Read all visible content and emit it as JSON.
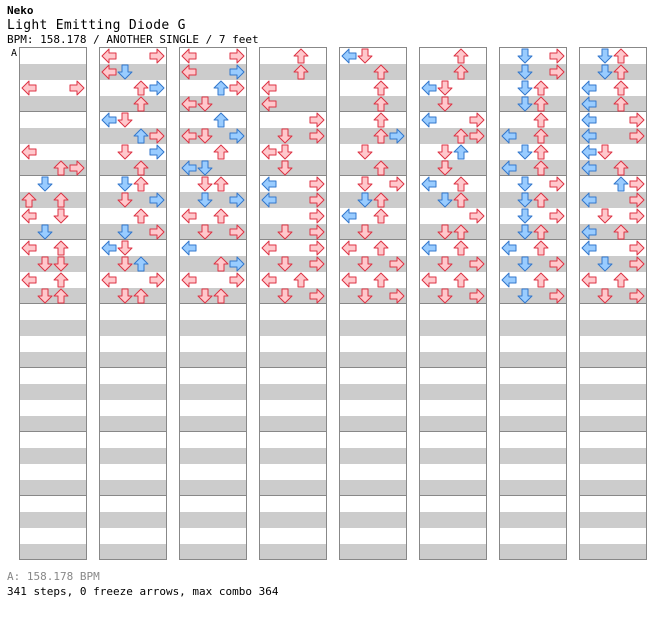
{
  "song": {
    "artist": "Neko",
    "title": "Light Emitting Diode G",
    "meta": "BPM: 158.178 / ANOTHER SINGLE / 7 feet"
  },
  "chart": {
    "tempo_marker": "A",
    "footer_bpm": "A: 158.178 BPM",
    "footer_stats": "341 steps, 0 freeze arrows, max combo 364",
    "colors": {
      "red_fill": "#ffc8cc",
      "red_stroke": "#dd3344",
      "blue_fill": "#99ccff",
      "blue_stroke": "#3377cc"
    },
    "notes": [
      [
        [
          2,
          0,
          "L",
          "r"
        ],
        [
          2,
          3,
          "R",
          "r"
        ],
        [
          6,
          0,
          "L",
          "r"
        ],
        [
          7,
          2,
          "U",
          "r"
        ],
        [
          7,
          3,
          "R",
          "r"
        ],
        [
          8,
          1,
          "D",
          "b"
        ],
        [
          9,
          0,
          "U",
          "r"
        ],
        [
          9,
          2,
          "U",
          "r"
        ],
        [
          10,
          0,
          "L",
          "r"
        ],
        [
          10,
          2,
          "D",
          "r"
        ],
        [
          11,
          1,
          "D",
          "b"
        ],
        [
          12,
          0,
          "L",
          "r"
        ],
        [
          12,
          2,
          "U",
          "r"
        ],
        [
          13,
          1,
          "D",
          "r"
        ],
        [
          13,
          2,
          "D",
          "r"
        ],
        [
          14,
          0,
          "L",
          "r"
        ],
        [
          14,
          2,
          "U",
          "r"
        ],
        [
          15,
          1,
          "D",
          "r"
        ],
        [
          15,
          2,
          "U",
          "r"
        ]
      ],
      [
        [
          0,
          0,
          "L",
          "r"
        ],
        [
          0,
          3,
          "R",
          "r"
        ],
        [
          1,
          0,
          "L",
          "r"
        ],
        [
          1,
          1,
          "D",
          "b"
        ],
        [
          2,
          2,
          "U",
          "r"
        ],
        [
          2,
          3,
          "R",
          "b"
        ],
        [
          3,
          2,
          "U",
          "r"
        ],
        [
          4,
          0,
          "L",
          "b"
        ],
        [
          4,
          1,
          "D",
          "r"
        ],
        [
          5,
          2,
          "U",
          "b"
        ],
        [
          5,
          3,
          "R",
          "r"
        ],
        [
          6,
          1,
          "D",
          "r"
        ],
        [
          6,
          3,
          "R",
          "b"
        ],
        [
          7,
          2,
          "U",
          "r"
        ],
        [
          8,
          1,
          "D",
          "b"
        ],
        [
          8,
          2,
          "U",
          "r"
        ],
        [
          9,
          1,
          "D",
          "r"
        ],
        [
          9,
          3,
          "R",
          "b"
        ],
        [
          10,
          2,
          "U",
          "r"
        ],
        [
          11,
          1,
          "D",
          "b"
        ],
        [
          11,
          3,
          "R",
          "r"
        ],
        [
          12,
          0,
          "L",
          "b"
        ],
        [
          12,
          1,
          "D",
          "r"
        ],
        [
          13,
          1,
          "D",
          "r"
        ],
        [
          13,
          2,
          "U",
          "b"
        ],
        [
          14,
          0,
          "L",
          "r"
        ],
        [
          14,
          3,
          "R",
          "r"
        ],
        [
          15,
          1,
          "D",
          "r"
        ],
        [
          15,
          2,
          "U",
          "r"
        ]
      ],
      [
        [
          0,
          0,
          "L",
          "r"
        ],
        [
          0,
          3,
          "R",
          "r"
        ],
        [
          1,
          0,
          "L",
          "r"
        ],
        [
          1,
          3,
          "R",
          "b"
        ],
        [
          2,
          2,
          "U",
          "b"
        ],
        [
          2,
          3,
          "R",
          "r"
        ],
        [
          3,
          0,
          "L",
          "r"
        ],
        [
          3,
          1,
          "D",
          "r"
        ],
        [
          4,
          2,
          "U",
          "b"
        ],
        [
          5,
          0,
          "L",
          "r"
        ],
        [
          5,
          1,
          "D",
          "r"
        ],
        [
          5,
          3,
          "R",
          "b"
        ],
        [
          6,
          2,
          "U",
          "r"
        ],
        [
          7,
          0,
          "L",
          "b"
        ],
        [
          7,
          1,
          "D",
          "b"
        ],
        [
          8,
          1,
          "D",
          "r"
        ],
        [
          8,
          2,
          "U",
          "r"
        ],
        [
          9,
          1,
          "D",
          "b"
        ],
        [
          9,
          3,
          "R",
          "b"
        ],
        [
          10,
          0,
          "L",
          "r"
        ],
        [
          10,
          2,
          "U",
          "r"
        ],
        [
          11,
          1,
          "D",
          "r"
        ],
        [
          11,
          3,
          "R",
          "r"
        ],
        [
          12,
          0,
          "L",
          "b"
        ],
        [
          13,
          2,
          "U",
          "r"
        ],
        [
          13,
          3,
          "R",
          "b"
        ],
        [
          14,
          0,
          "L",
          "r"
        ],
        [
          14,
          3,
          "R",
          "r"
        ],
        [
          15,
          1,
          "D",
          "r"
        ],
        [
          15,
          2,
          "U",
          "r"
        ]
      ],
      [
        [
          0,
          2,
          "U",
          "r"
        ],
        [
          1,
          2,
          "U",
          "r"
        ],
        [
          2,
          0,
          "L",
          "r"
        ],
        [
          3,
          0,
          "L",
          "r"
        ],
        [
          4,
          3,
          "R",
          "r"
        ],
        [
          5,
          1,
          "D",
          "r"
        ],
        [
          5,
          3,
          "R",
          "r"
        ],
        [
          6,
          0,
          "L",
          "r"
        ],
        [
          6,
          1,
          "D",
          "r"
        ],
        [
          7,
          1,
          "D",
          "r"
        ],
        [
          8,
          0,
          "L",
          "b"
        ],
        [
          8,
          3,
          "R",
          "r"
        ],
        [
          9,
          0,
          "L",
          "b"
        ],
        [
          9,
          3,
          "R",
          "r"
        ],
        [
          10,
          3,
          "R",
          "r"
        ],
        [
          11,
          1,
          "D",
          "r"
        ],
        [
          11,
          3,
          "R",
          "r"
        ],
        [
          12,
          0,
          "L",
          "r"
        ],
        [
          12,
          3,
          "R",
          "r"
        ],
        [
          13,
          1,
          "D",
          "r"
        ],
        [
          13,
          3,
          "R",
          "r"
        ],
        [
          14,
          0,
          "L",
          "r"
        ],
        [
          14,
          2,
          "U",
          "r"
        ],
        [
          15,
          1,
          "D",
          "r"
        ],
        [
          15,
          3,
          "R",
          "r"
        ]
      ],
      [
        [
          0,
          0,
          "L",
          "b"
        ],
        [
          0,
          1,
          "D",
          "r"
        ],
        [
          1,
          2,
          "U",
          "r"
        ],
        [
          2,
          2,
          "U",
          "r"
        ],
        [
          3,
          2,
          "U",
          "r"
        ],
        [
          4,
          2,
          "U",
          "r"
        ],
        [
          5,
          2,
          "U",
          "r"
        ],
        [
          5,
          3,
          "R",
          "b"
        ],
        [
          6,
          1,
          "D",
          "r"
        ],
        [
          7,
          2,
          "U",
          "r"
        ],
        [
          8,
          1,
          "D",
          "r"
        ],
        [
          8,
          3,
          "R",
          "r"
        ],
        [
          9,
          1,
          "D",
          "b"
        ],
        [
          9,
          2,
          "U",
          "r"
        ],
        [
          10,
          0,
          "L",
          "b"
        ],
        [
          10,
          2,
          "U",
          "r"
        ],
        [
          11,
          1,
          "D",
          "r"
        ],
        [
          12,
          0,
          "L",
          "r"
        ],
        [
          12,
          2,
          "U",
          "r"
        ],
        [
          13,
          1,
          "D",
          "r"
        ],
        [
          13,
          3,
          "R",
          "r"
        ],
        [
          14,
          0,
          "L",
          "r"
        ],
        [
          14,
          2,
          "U",
          "r"
        ],
        [
          15,
          1,
          "D",
          "r"
        ],
        [
          15,
          3,
          "R",
          "r"
        ]
      ],
      [
        [
          0,
          2,
          "U",
          "r"
        ],
        [
          1,
          2,
          "U",
          "r"
        ],
        [
          2,
          0,
          "L",
          "b"
        ],
        [
          2,
          1,
          "D",
          "r"
        ],
        [
          3,
          1,
          "D",
          "r"
        ],
        [
          4,
          0,
          "L",
          "b"
        ],
        [
          4,
          3,
          "R",
          "r"
        ],
        [
          5,
          2,
          "U",
          "r"
        ],
        [
          5,
          3,
          "R",
          "r"
        ],
        [
          6,
          1,
          "D",
          "r"
        ],
        [
          6,
          2,
          "U",
          "b"
        ],
        [
          7,
          1,
          "D",
          "r"
        ],
        [
          8,
          0,
          "L",
          "b"
        ],
        [
          8,
          2,
          "U",
          "r"
        ],
        [
          9,
          1,
          "D",
          "b"
        ],
        [
          9,
          2,
          "U",
          "r"
        ],
        [
          10,
          3,
          "R",
          "r"
        ],
        [
          11,
          1,
          "D",
          "r"
        ],
        [
          11,
          2,
          "U",
          "r"
        ],
        [
          12,
          0,
          "L",
          "b"
        ],
        [
          12,
          2,
          "U",
          "r"
        ],
        [
          13,
          1,
          "D",
          "r"
        ],
        [
          13,
          3,
          "R",
          "r"
        ],
        [
          14,
          0,
          "L",
          "r"
        ],
        [
          14,
          2,
          "U",
          "r"
        ],
        [
          15,
          1,
          "D",
          "r"
        ],
        [
          15,
          3,
          "R",
          "r"
        ]
      ],
      [
        [
          0,
          1,
          "D",
          "b"
        ],
        [
          0,
          3,
          "R",
          "r"
        ],
        [
          1,
          1,
          "D",
          "b"
        ],
        [
          1,
          3,
          "R",
          "r"
        ],
        [
          2,
          1,
          "D",
          "b"
        ],
        [
          2,
          2,
          "U",
          "r"
        ],
        [
          3,
          1,
          "D",
          "b"
        ],
        [
          3,
          2,
          "U",
          "r"
        ],
        [
          4,
          2,
          "U",
          "r"
        ],
        [
          5,
          0,
          "L",
          "b"
        ],
        [
          5,
          2,
          "U",
          "r"
        ],
        [
          6,
          1,
          "D",
          "b"
        ],
        [
          6,
          2,
          "U",
          "r"
        ],
        [
          7,
          0,
          "L",
          "b"
        ],
        [
          7,
          2,
          "U",
          "r"
        ],
        [
          8,
          1,
          "D",
          "b"
        ],
        [
          8,
          3,
          "R",
          "r"
        ],
        [
          9,
          1,
          "D",
          "b"
        ],
        [
          9,
          2,
          "U",
          "r"
        ],
        [
          10,
          1,
          "D",
          "b"
        ],
        [
          10,
          3,
          "R",
          "r"
        ],
        [
          11,
          1,
          "D",
          "b"
        ],
        [
          11,
          2,
          "U",
          "r"
        ],
        [
          12,
          0,
          "L",
          "b"
        ],
        [
          12,
          2,
          "U",
          "r"
        ],
        [
          13,
          1,
          "D",
          "b"
        ],
        [
          13,
          3,
          "R",
          "r"
        ],
        [
          14,
          0,
          "L",
          "b"
        ],
        [
          14,
          2,
          "U",
          "r"
        ],
        [
          15,
          1,
          "D",
          "b"
        ],
        [
          15,
          3,
          "R",
          "r"
        ]
      ],
      [
        [
          0,
          1,
          "D",
          "b"
        ],
        [
          0,
          2,
          "U",
          "r"
        ],
        [
          1,
          1,
          "D",
          "b"
        ],
        [
          1,
          2,
          "U",
          "r"
        ],
        [
          2,
          0,
          "L",
          "b"
        ],
        [
          2,
          2,
          "U",
          "r"
        ],
        [
          3,
          0,
          "L",
          "b"
        ],
        [
          3,
          2,
          "U",
          "r"
        ],
        [
          4,
          0,
          "L",
          "b"
        ],
        [
          4,
          3,
          "R",
          "r"
        ],
        [
          5,
          0,
          "L",
          "b"
        ],
        [
          5,
          3,
          "R",
          "r"
        ],
        [
          6,
          0,
          "L",
          "b"
        ],
        [
          6,
          1,
          "D",
          "r"
        ],
        [
          7,
          0,
          "L",
          "b"
        ],
        [
          7,
          2,
          "U",
          "r"
        ],
        [
          8,
          2,
          "U",
          "b"
        ],
        [
          8,
          3,
          "R",
          "r"
        ],
        [
          9,
          0,
          "L",
          "b"
        ],
        [
          9,
          3,
          "R",
          "r"
        ],
        [
          10,
          1,
          "D",
          "r"
        ],
        [
          10,
          3,
          "R",
          "r"
        ],
        [
          11,
          0,
          "L",
          "b"
        ],
        [
          11,
          2,
          "U",
          "r"
        ],
        [
          12,
          0,
          "L",
          "b"
        ],
        [
          12,
          3,
          "R",
          "r"
        ],
        [
          13,
          1,
          "D",
          "b"
        ],
        [
          13,
          3,
          "R",
          "r"
        ],
        [
          14,
          0,
          "L",
          "r"
        ],
        [
          14,
          2,
          "U",
          "r"
        ],
        [
          15,
          1,
          "D",
          "r"
        ],
        [
          15,
          3,
          "R",
          "r"
        ]
      ]
    ]
  }
}
